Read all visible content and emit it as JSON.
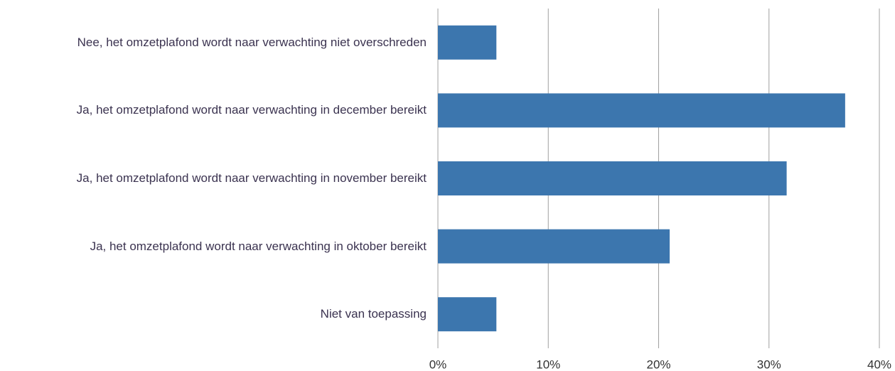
{
  "chart_data": {
    "type": "barh",
    "categories": [
      "Nee, het omzetplafond wordt naar verwachting niet overschreden",
      "Ja, het omzetplafond wordt naar verwachting in december bereikt",
      "Ja, het omzetplafond wordt naar verwachting in november bereikt",
      "Ja, het omzetplafond wordt naar verwachting in oktober bereikt",
      "Niet van toepassing"
    ],
    "values": [
      5.3,
      36.9,
      31.6,
      21.0,
      5.3
    ],
    "color": "#3c76ae",
    "xlim": [
      0,
      40
    ],
    "xticks": [
      {
        "value": 0,
        "label": "0%"
      },
      {
        "value": 10,
        "label": "10%"
      },
      {
        "value": 20,
        "label": "20%"
      },
      {
        "value": 30,
        "label": "30%"
      },
      {
        "value": 40,
        "label": "40%"
      }
    ],
    "grid": true
  }
}
